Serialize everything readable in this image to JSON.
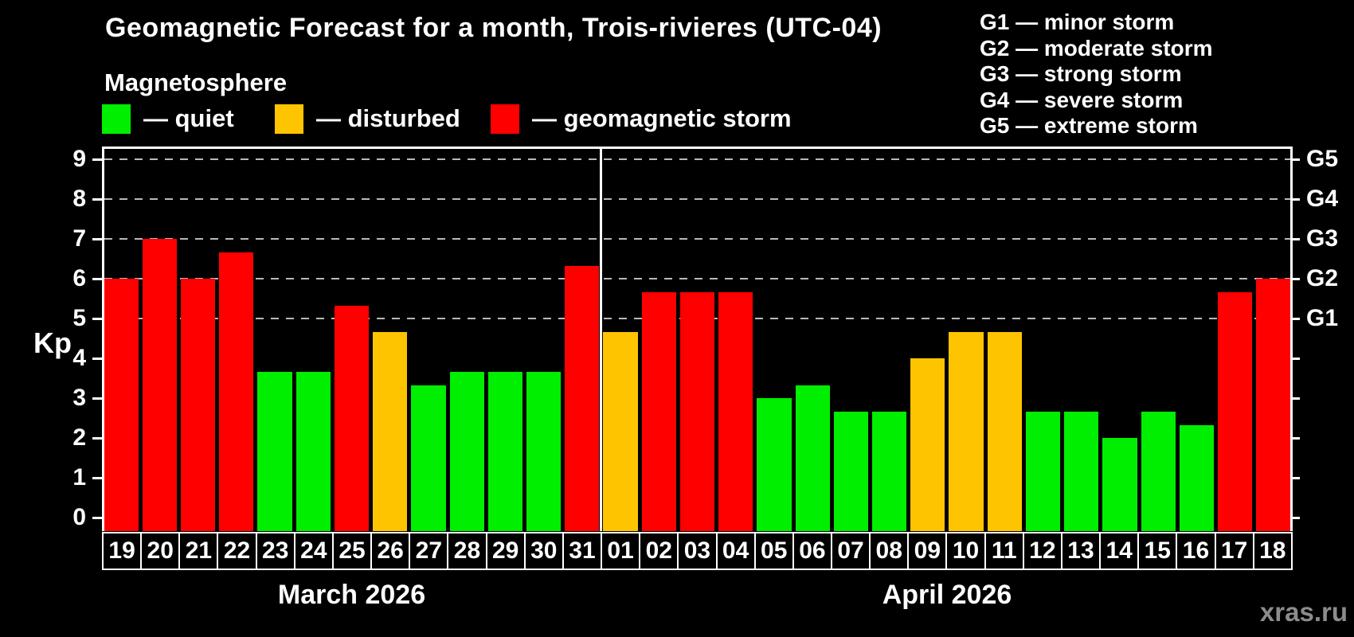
{
  "title": "Geomagnetic Forecast for a month, Trois-rivieres (UTC-04)",
  "subtitle": "Magnetosphere",
  "legend": {
    "items": [
      {
        "status": "quiet",
        "label": "— quiet"
      },
      {
        "status": "disturbed",
        "label": "— disturbed"
      },
      {
        "status": "storm",
        "label": "— geomagnetic storm"
      }
    ]
  },
  "g_legend": {
    "items": [
      {
        "code": "G1",
        "text": "G1 — minor storm"
      },
      {
        "code": "G2",
        "text": "G2 — moderate storm"
      },
      {
        "code": "G3",
        "text": "G3 — strong storm"
      },
      {
        "code": "G4",
        "text": "G4 — severe storm"
      },
      {
        "code": "G5",
        "text": "G5 — extreme storm"
      }
    ]
  },
  "watermark": "xras.ru",
  "chart_data": {
    "type": "bar",
    "title": "Geomagnetic Forecast for a month, Trois-rivieres (UTC-04)",
    "ylabel": "Kp",
    "ylim": [
      -0.34,
      9.32
    ],
    "yticks": [
      0,
      1,
      2,
      3,
      4,
      5,
      6,
      7,
      8,
      9
    ],
    "gridlines_kp": [
      5,
      6,
      7,
      8,
      9
    ],
    "grid": "dashed horizontal at G-levels only",
    "right_axis_labels": [
      {
        "kp": 5,
        "text": "G1"
      },
      {
        "kp": 6,
        "text": "G2"
      },
      {
        "kp": 7,
        "text": "G3"
      },
      {
        "kp": 8,
        "text": "G4"
      },
      {
        "kp": 9,
        "text": "G5"
      }
    ],
    "status_colors": {
      "quiet": "#00ee00",
      "disturbed": "#ffc400",
      "storm": "#ff0000"
    },
    "months": [
      {
        "label": "March 2026",
        "days": [
          {
            "day": "19",
            "kp": 6.0,
            "status": "storm"
          },
          {
            "day": "20",
            "kp": 7.0,
            "status": "storm"
          },
          {
            "day": "21",
            "kp": 6.0,
            "status": "storm"
          },
          {
            "day": "22",
            "kp": 6.67,
            "status": "storm"
          },
          {
            "day": "23",
            "kp": 3.67,
            "status": "quiet"
          },
          {
            "day": "24",
            "kp": 3.67,
            "status": "quiet"
          },
          {
            "day": "25",
            "kp": 5.33,
            "status": "storm"
          },
          {
            "day": "26",
            "kp": 4.67,
            "status": "disturbed"
          },
          {
            "day": "27",
            "kp": 3.33,
            "status": "quiet"
          },
          {
            "day": "28",
            "kp": 3.67,
            "status": "quiet"
          },
          {
            "day": "29",
            "kp": 3.67,
            "status": "quiet"
          },
          {
            "day": "30",
            "kp": 3.67,
            "status": "quiet"
          },
          {
            "day": "31",
            "kp": 6.33,
            "status": "storm"
          }
        ]
      },
      {
        "label": "April 2026",
        "days": [
          {
            "day": "01",
            "kp": 4.67,
            "status": "disturbed"
          },
          {
            "day": "02",
            "kp": 5.67,
            "status": "storm"
          },
          {
            "day": "03",
            "kp": 5.67,
            "status": "storm"
          },
          {
            "day": "04",
            "kp": 5.67,
            "status": "storm"
          },
          {
            "day": "05",
            "kp": 3.0,
            "status": "quiet"
          },
          {
            "day": "06",
            "kp": 3.33,
            "status": "quiet"
          },
          {
            "day": "07",
            "kp": 2.67,
            "status": "quiet"
          },
          {
            "day": "08",
            "kp": 2.67,
            "status": "quiet"
          },
          {
            "day": "09",
            "kp": 4.0,
            "status": "disturbed"
          },
          {
            "day": "10",
            "kp": 4.67,
            "status": "disturbed"
          },
          {
            "day": "11",
            "kp": 4.67,
            "status": "disturbed"
          },
          {
            "day": "12",
            "kp": 2.67,
            "status": "quiet"
          },
          {
            "day": "13",
            "kp": 2.67,
            "status": "quiet"
          },
          {
            "day": "14",
            "kp": 2.0,
            "status": "quiet"
          },
          {
            "day": "15",
            "kp": 2.67,
            "status": "quiet"
          },
          {
            "day": "16",
            "kp": 2.33,
            "status": "quiet"
          },
          {
            "day": "17",
            "kp": 5.67,
            "status": "storm"
          },
          {
            "day": "18",
            "kp": 6.0,
            "status": "storm"
          }
        ]
      }
    ]
  }
}
